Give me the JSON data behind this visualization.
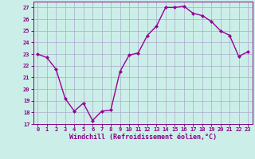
{
  "x": [
    0,
    1,
    2,
    3,
    4,
    5,
    6,
    7,
    8,
    9,
    10,
    11,
    12,
    13,
    14,
    15,
    16,
    17,
    18,
    19,
    20,
    21,
    22,
    23
  ],
  "y": [
    23,
    22.7,
    21.7,
    19.2,
    18.1,
    18.8,
    17.3,
    18.1,
    18.2,
    21.5,
    22.9,
    23.1,
    24.6,
    25.4,
    27.0,
    27.0,
    27.1,
    26.5,
    26.3,
    25.8,
    25.0,
    24.6,
    22.8,
    23.2
  ],
  "line_color": "#990099",
  "marker": "D",
  "markersize": 2.0,
  "linewidth": 1.0,
  "xlim": [
    -0.5,
    23.5
  ],
  "ylim": [
    17,
    27.5
  ],
  "yticks": [
    17,
    18,
    19,
    20,
    21,
    22,
    23,
    24,
    25,
    26,
    27
  ],
  "xticks": [
    0,
    1,
    2,
    3,
    4,
    5,
    6,
    7,
    8,
    9,
    10,
    11,
    12,
    13,
    14,
    15,
    16,
    17,
    18,
    19,
    20,
    21,
    22,
    23
  ],
  "xlabel": "Windchill (Refroidissement éolien,°C)",
  "background_color": "#cceee8",
  "grid_color": "#aaaacc",
  "tick_color": "#880088",
  "line_dark": "#880088",
  "tick_labelsize": 5.0,
  "xlabel_fontsize": 6.0
}
